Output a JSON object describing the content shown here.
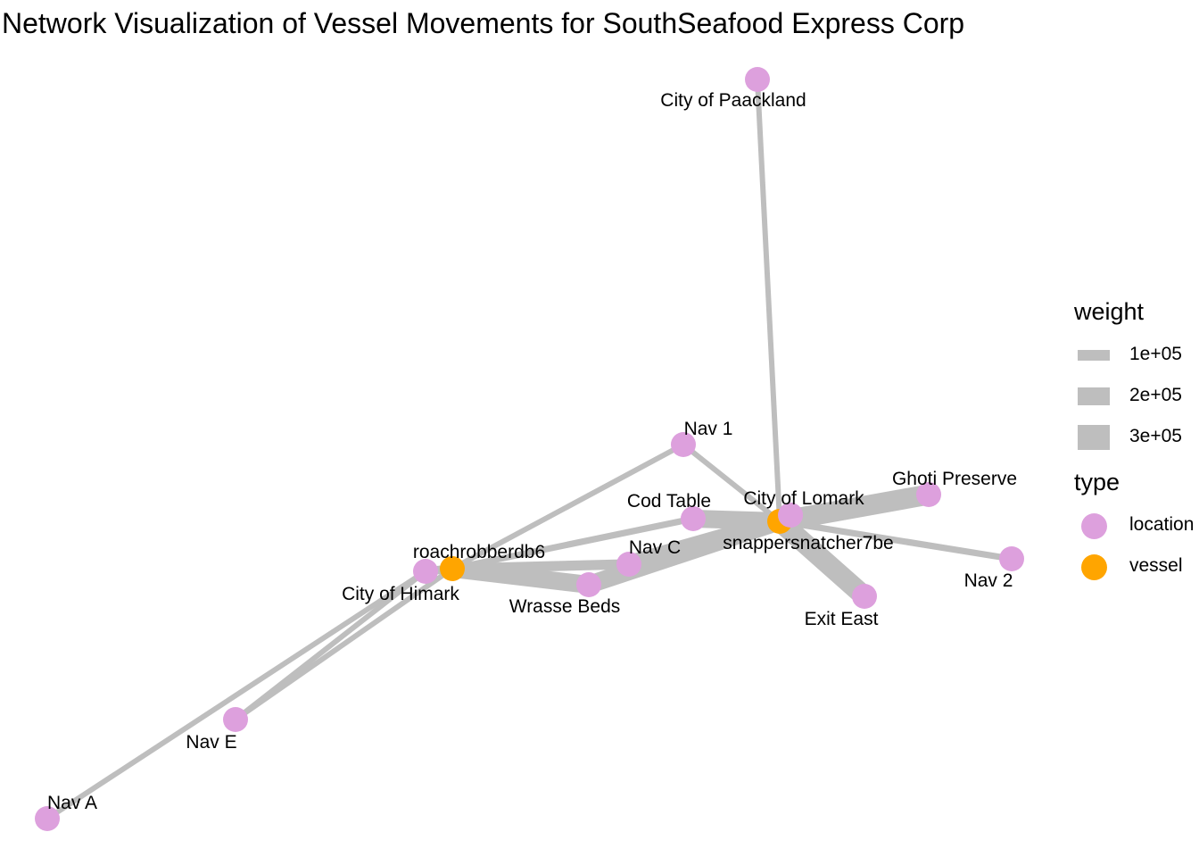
{
  "title": "Network Visualization of Vessel Movements for SouthSeafood Express Corp",
  "colors": {
    "location": "#dda0dd",
    "vessel": "#ffa500",
    "edge": "#bebebe"
  },
  "nodes": [
    {
      "id": "paackland",
      "label": "City of Paackland",
      "type": "location"
    },
    {
      "id": "nav1",
      "label": "Nav 1",
      "type": "location"
    },
    {
      "id": "lomark",
      "label": "City of Lomark",
      "type": "location"
    },
    {
      "id": "ghoti",
      "label": "Ghoti Preserve",
      "type": "location"
    },
    {
      "id": "codtable",
      "label": "Cod Table",
      "type": "location"
    },
    {
      "id": "snapper",
      "label": "snappersnatcher7be",
      "type": "vessel"
    },
    {
      "id": "nav2",
      "label": "Nav 2",
      "type": "location"
    },
    {
      "id": "roach",
      "label": "roachrobberdb6",
      "type": "vessel"
    },
    {
      "id": "navc",
      "label": "Nav C",
      "type": "location"
    },
    {
      "id": "himark",
      "label": "City of Himark",
      "type": "location"
    },
    {
      "id": "wrasse",
      "label": "Wrasse Beds",
      "type": "location"
    },
    {
      "id": "exiteast",
      "label": "Exit East",
      "type": "location"
    },
    {
      "id": "nave",
      "label": "Nav E",
      "type": "location"
    },
    {
      "id": "nava",
      "label": "Nav A",
      "type": "location"
    }
  ],
  "edges": [
    {
      "source": "snapper",
      "target": "paackland",
      "weight": 60000
    },
    {
      "source": "snapper",
      "target": "nav1",
      "weight": 60000
    },
    {
      "source": "roach",
      "target": "nav1",
      "weight": 60000
    },
    {
      "source": "snapper",
      "target": "ghoti",
      "weight": 350000
    },
    {
      "source": "snapper",
      "target": "lomark",
      "weight": 200000
    },
    {
      "source": "snapper",
      "target": "codtable",
      "weight": 300000
    },
    {
      "source": "snapper",
      "target": "nav2",
      "weight": 80000
    },
    {
      "source": "snapper",
      "target": "exiteast",
      "weight": 350000
    },
    {
      "source": "snapper",
      "target": "navc",
      "weight": 300000
    },
    {
      "source": "snapper",
      "target": "wrasse",
      "weight": 300000
    },
    {
      "source": "roach",
      "target": "codtable",
      "weight": 80000
    },
    {
      "source": "roach",
      "target": "navc",
      "weight": 150000
    },
    {
      "source": "roach",
      "target": "wrasse",
      "weight": 300000
    },
    {
      "source": "roach",
      "target": "himark",
      "weight": 120000
    },
    {
      "source": "roach",
      "target": "nave",
      "weight": 60000
    },
    {
      "source": "himark",
      "target": "nave",
      "weight": 60000
    },
    {
      "source": "himark",
      "target": "nava",
      "weight": 60000
    }
  ],
  "legend": {
    "weight_title": "weight",
    "weight_items": [
      {
        "label": "1e+05",
        "value": 100000
      },
      {
        "label": "2e+05",
        "value": 200000
      },
      {
        "label": "3e+05",
        "value": 300000
      }
    ],
    "type_title": "type",
    "type_items": [
      {
        "label": "location",
        "type": "location"
      },
      {
        "label": "vessel",
        "type": "vessel"
      }
    ]
  }
}
